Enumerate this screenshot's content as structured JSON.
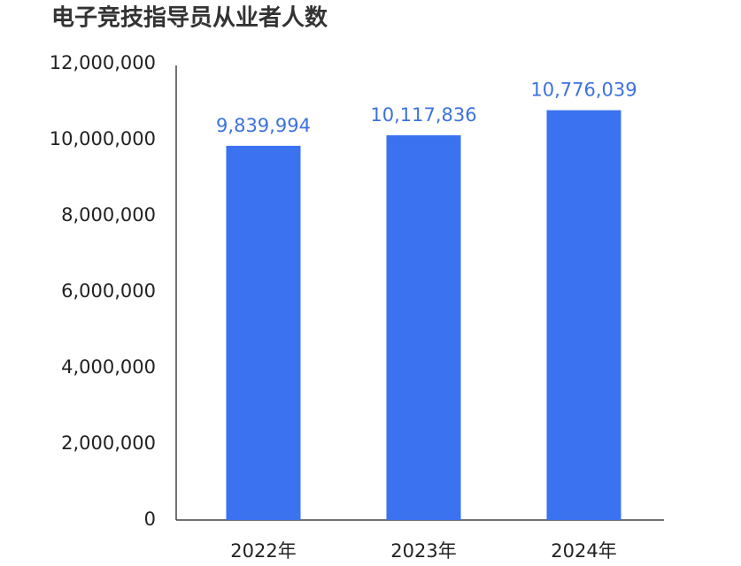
{
  "chart_data": {
    "type": "bar",
    "title": "电子竞技指导员从业者人数",
    "categories": [
      "2022年",
      "2023年",
      "2024年"
    ],
    "values": [
      9839994,
      10117836,
      10776039
    ],
    "value_labels": [
      "9,839,994",
      "10,117,836",
      "10,776,039"
    ],
    "color": "#3a72f0",
    "label_color": "#3d72de",
    "ylim": [
      0,
      12000000
    ],
    "yticks": [
      0,
      {
        "value": 2000000,
        "label": "2,000,000"
      },
      {
        "value": 4000000,
        "label": "4,000,000"
      },
      {
        "value": 6000000,
        "label": "6,000,000"
      },
      {
        "value": 8000000,
        "label": "8,000,000"
      },
      {
        "value": 10000000,
        "label": "10,000,000"
      },
      {
        "value": 12000000,
        "label": "12,000,000"
      }
    ],
    "grid": false
  }
}
